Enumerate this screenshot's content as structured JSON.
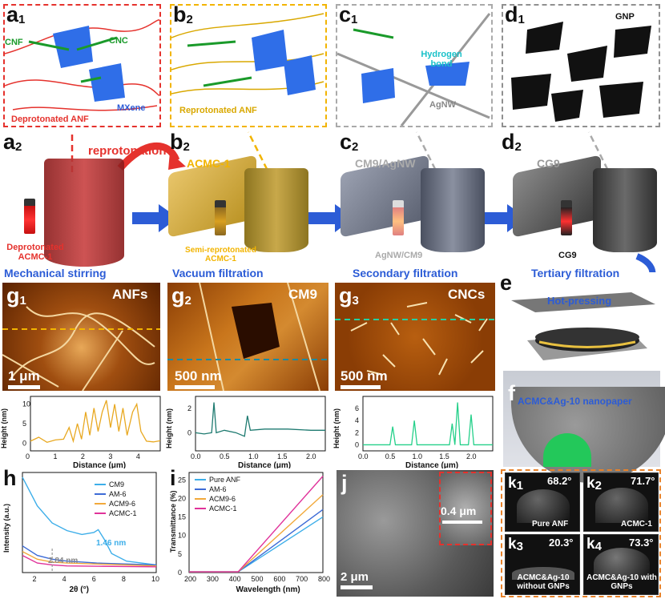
{
  "panels": {
    "a1": {
      "label": "a",
      "sub": "1",
      "texts": {
        "cnf": "CNF",
        "cnc": "CNC",
        "mxene": "MXene",
        "anf": "Deprotonated ANF"
      }
    },
    "b1": {
      "label": "b",
      "sub": "2",
      "texts": {
        "anf": "Reprotonated ANF"
      }
    },
    "c1": {
      "label": "c",
      "sub": "1",
      "texts": {
        "hb": "Hydrogen bond",
        "agnw": "AgNW"
      }
    },
    "d1": {
      "label": "d",
      "sub": "1",
      "texts": {
        "gnp": "GNP"
      }
    },
    "a2": {
      "label": "a",
      "sub": "2",
      "vial": "Deprotonated ACMC-1",
      "caption": "Mechanical stirring",
      "arrow": "reprotonation"
    },
    "b2": {
      "label": "b",
      "sub": "2",
      "title": "ACMC-1",
      "vial": "Semi-reprotonated ACMC-1",
      "caption": "Vacuum filtration"
    },
    "c2": {
      "label": "c",
      "sub": "2",
      "title": "CM9/AgNW",
      "vial": "AgNW/CM9",
      "caption": "Secondary filtration"
    },
    "d2": {
      "label": "d",
      "sub": "2",
      "title": "CG9",
      "vial": "CG9",
      "caption": "Tertiary filtration"
    },
    "e": {
      "label": "e",
      "caption": "Hot-pressing"
    },
    "f": {
      "label": "f",
      "caption": "ACMC&Ag-10 nanopaper"
    },
    "g1": {
      "label": "g",
      "sub": "1",
      "title": "ANFs",
      "scale": "1 μm",
      "ylabel": "Height (nm)",
      "xlabel": "Distance (μm)",
      "yticks": [
        "0",
        "5",
        "10"
      ],
      "xticks": [
        "0",
        "1",
        "2",
        "3",
        "4"
      ]
    },
    "g2": {
      "label": "g",
      "sub": "2",
      "title": "CM9",
      "scale": "500 nm",
      "ylabel": "Height (nm)",
      "xlabel": "Distance (μm)",
      "yticks": [
        "0",
        "2"
      ],
      "xticks": [
        "0.0",
        "0.5",
        "1.0",
        "1.5",
        "2.0"
      ]
    },
    "g3": {
      "label": "g",
      "sub": "3",
      "title": "CNCs",
      "scale": "500 nm",
      "ylabel": "Height (nm)",
      "xlabel": "Distance (μm)",
      "yticks": [
        "0",
        "2",
        "4",
        "6"
      ],
      "xticks": [
        "0.0",
        "0.5",
        "1.0",
        "1.5",
        "2.0"
      ]
    },
    "h": {
      "label": "h",
      "ylabel": "Intensity (a.u.)",
      "xlabel": "2θ (°)",
      "xticks": [
        "2",
        "4",
        "6",
        "8",
        "10"
      ],
      "legend": [
        "CM9",
        "AM-6",
        "ACM9-6",
        "ACMC-1"
      ],
      "ann1": "1.46 nm",
      "ann2": "2.84 nm"
    },
    "i": {
      "label": "i",
      "ylabel": "Transmittance (%)",
      "xlabel": "Wavelength (nm)",
      "xticks": [
        "200",
        "300",
        "400",
        "500",
        "600",
        "700",
        "800"
      ],
      "yticks": [
        "0",
        "5",
        "10",
        "15",
        "20",
        "25"
      ],
      "legend": [
        "Pure ANF",
        "AM-6",
        "ACM9-6",
        "ACMC-1"
      ]
    },
    "j": {
      "label": "j",
      "scale1": "2 μm",
      "scale2": "0.4 μm"
    },
    "k1": {
      "label": "k",
      "sub": "1",
      "angle": "68.2°",
      "name": "Pure ANF"
    },
    "k2": {
      "label": "k",
      "sub": "2",
      "angle": "71.7°",
      "name": "ACMC-1"
    },
    "k3": {
      "label": "k",
      "sub": "3",
      "angle": "20.3°",
      "name": "ACMC&Ag-10 without GNPs"
    },
    "k4": {
      "label": "k",
      "sub": "4",
      "angle": "73.3°",
      "name": "ACMC&Ag-10 with GNPs"
    }
  },
  "colors": {
    "a": "#e5322d",
    "b": "#f2b400",
    "c": "#aaaaaa",
    "d": "#909090",
    "blue": "#2c5cd6",
    "k": "#e8822a",
    "h_series": [
      "#3daee9",
      "#3d6bd6",
      "#f2a93b",
      "#e0329a"
    ],
    "i_series": [
      "#3daee9",
      "#3d6bd6",
      "#f2a93b",
      "#e0329a"
    ]
  },
  "chart_data": [
    {
      "type": "line",
      "title": "g1",
      "xlabel": "Distance (μm)",
      "ylabel": "Height (nm)",
      "xlim": [
        0,
        4.7
      ],
      "ylim": [
        -2,
        12
      ],
      "series": [
        {
          "values": [
            [
              0,
              0.5
            ],
            [
              0.3,
              1.5
            ],
            [
              0.6,
              0.2
            ],
            [
              0.9,
              0.8
            ],
            [
              1.2,
              1
            ],
            [
              1.4,
              4
            ],
            [
              1.55,
              0.5
            ],
            [
              1.7,
              5
            ],
            [
              1.85,
              1
            ],
            [
              2,
              8
            ],
            [
              2.15,
              2
            ],
            [
              2.3,
              9
            ],
            [
              2.45,
              3
            ],
            [
              2.6,
              8
            ],
            [
              2.75,
              11
            ],
            [
              2.9,
              4
            ],
            [
              3.05,
              10
            ],
            [
              3.2,
              3
            ],
            [
              3.35,
              9
            ],
            [
              3.5,
              2
            ],
            [
              3.7,
              8
            ],
            [
              3.85,
              10
            ],
            [
              4,
              3
            ],
            [
              4.2,
              0.5
            ],
            [
              4.45,
              0.3
            ],
            [
              4.7,
              0.6
            ]
          ]
        }
      ]
    },
    {
      "type": "line",
      "title": "g2",
      "xlabel": "Distance (μm)",
      "ylabel": "Height (nm)",
      "xlim": [
        0,
        2.25
      ],
      "ylim": [
        -1.5,
        3
      ],
      "series": [
        {
          "values": [
            [
              0,
              0
            ],
            [
              0.15,
              -0.1
            ],
            [
              0.28,
              0
            ],
            [
              0.32,
              2.5
            ],
            [
              0.36,
              0
            ],
            [
              0.5,
              0.2
            ],
            [
              0.7,
              0
            ],
            [
              0.85,
              -0.3
            ],
            [
              0.9,
              1.4
            ],
            [
              0.95,
              0.2
            ],
            [
              1.2,
              0.3
            ],
            [
              1.6,
              0.3
            ],
            [
              2,
              0.2
            ],
            [
              2.25,
              0.2
            ]
          ]
        }
      ]
    },
    {
      "type": "line",
      "title": "g3",
      "xlabel": "Distance (μm)",
      "ylabel": "Height (nm)",
      "xlim": [
        0,
        2.4
      ],
      "ylim": [
        -1,
        8
      ],
      "series": [
        {
          "values": [
            [
              0,
              0
            ],
            [
              0.5,
              0
            ],
            [
              0.55,
              3
            ],
            [
              0.6,
              0
            ],
            [
              0.9,
              0
            ],
            [
              0.95,
              4
            ],
            [
              1.0,
              0
            ],
            [
              1.6,
              0
            ],
            [
              1.65,
              3.5
            ],
            [
              1.7,
              0
            ],
            [
              1.75,
              7
            ],
            [
              1.8,
              0
            ],
            [
              1.95,
              0
            ],
            [
              2.0,
              5
            ],
            [
              2.05,
              0
            ],
            [
              2.4,
              0
            ]
          ]
        }
      ]
    },
    {
      "type": "line",
      "title": "h",
      "xlabel": "2θ (°)",
      "ylabel": "Intensity (a.u.)",
      "xlim": [
        1,
        10
      ],
      "series": [
        {
          "name": "CM9",
          "values": [
            [
              1,
              100
            ],
            [
              2,
              70
            ],
            [
              3,
              52
            ],
            [
              4,
              44
            ],
            [
              5,
              40
            ],
            [
              5.8,
              42
            ],
            [
              6.1,
              45
            ],
            [
              6.5,
              35
            ],
            [
              7,
              20
            ],
            [
              8,
              12
            ],
            [
              10,
              8
            ]
          ]
        },
        {
          "name": "AM-6",
          "values": [
            [
              1,
              28
            ],
            [
              2,
              18
            ],
            [
              3,
              14
            ],
            [
              4,
              12
            ],
            [
              6,
              10
            ],
            [
              10,
              8
            ]
          ]
        },
        {
          "name": "ACM9-6",
          "values": [
            [
              1,
              22
            ],
            [
              2,
              14
            ],
            [
              3,
              11
            ],
            [
              4,
              10
            ],
            [
              10,
              7
            ]
          ]
        },
        {
          "name": "ACMC-1",
          "values": [
            [
              1,
              18
            ],
            [
              2,
              10
            ],
            [
              3,
              8
            ],
            [
              4,
              7
            ],
            [
              10,
              6
            ]
          ]
        }
      ]
    },
    {
      "type": "line",
      "title": "i",
      "xlabel": "Wavelength (nm)",
      "ylabel": "Transmittance (%)",
      "xlim": [
        200,
        800
      ],
      "ylim": [
        0,
        27
      ],
      "series": [
        {
          "name": "Pure ANF",
          "values": [
            [
              200,
              0.2
            ],
            [
              420,
              0.2
            ],
            [
              800,
              15
            ]
          ]
        },
        {
          "name": "AM-6",
          "values": [
            [
              200,
              0.2
            ],
            [
              420,
              0.2
            ],
            [
              800,
              17
            ]
          ]
        },
        {
          "name": "ACM9-6",
          "values": [
            [
              200,
              0.2
            ],
            [
              420,
              0.2
            ],
            [
              800,
              21
            ]
          ]
        },
        {
          "name": "ACMC-1",
          "values": [
            [
              200,
              0.2
            ],
            [
              420,
              0.2
            ],
            [
              800,
              26
            ]
          ]
        }
      ]
    }
  ]
}
